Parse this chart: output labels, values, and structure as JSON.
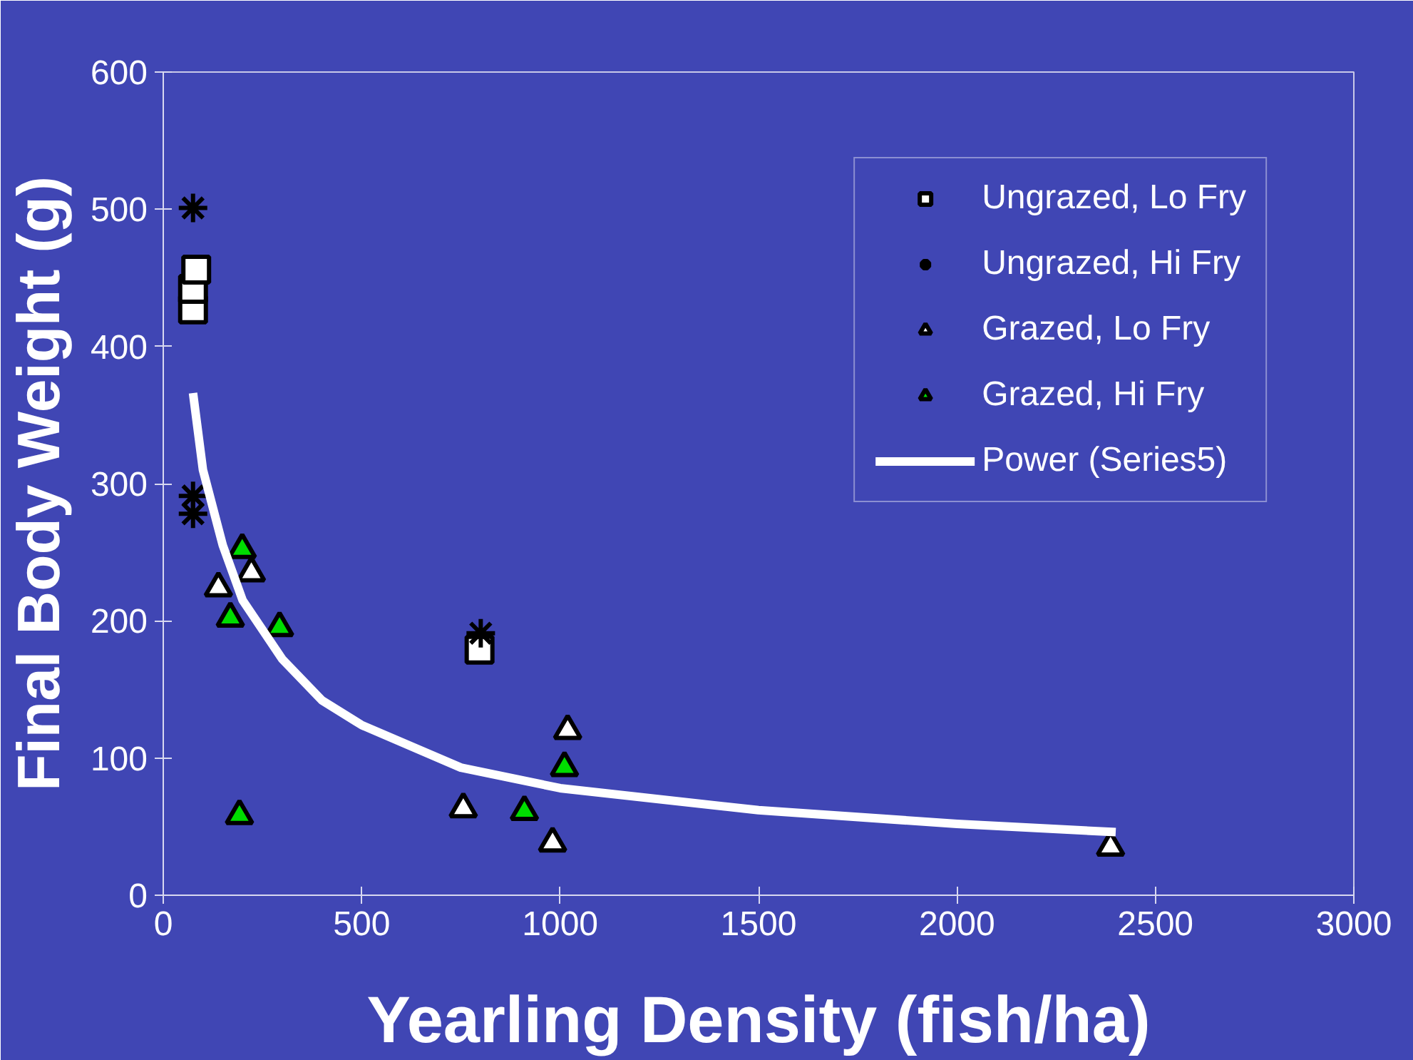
{
  "chart_data": {
    "type": "scatter",
    "xlabel": "Yearling Density (fish/ha)",
    "ylabel": "Final Body Weight (g)",
    "xlim": [
      0,
      3000
    ],
    "xticks": [
      0,
      500,
      1000,
      1500,
      2000,
      2500,
      3000
    ],
    "ylim": [
      0,
      600
    ],
    "yticks": [
      0,
      100,
      200,
      300,
      400,
      500,
      600
    ],
    "grid": false,
    "legend": "top right",
    "series": [
      {
        "name": "Ungrazed, Lo Fry",
        "color": "#ffffff",
        "marker": "square",
        "x": [
          75,
          75,
          83,
          797
        ],
        "values": [
          427,
          442,
          456,
          179
        ]
      },
      {
        "name": "Ungrazed, Hi Fry",
        "color": "#000000",
        "marker": "cross",
        "x": [
          75,
          75,
          75,
          800
        ],
        "values": [
          501,
          291,
          278,
          191
        ]
      },
      {
        "name": "Grazed, Lo Fry",
        "color": "#ffffff",
        "marker": "triangle",
        "x": [
          139,
          222,
          756,
          1019,
          981,
          2387
        ],
        "values": [
          224,
          235,
          63,
          120,
          38,
          35
        ]
      },
      {
        "name": "Grazed, Hi Fry",
        "color": "#00dd00",
        "marker": "triangle",
        "x": [
          199,
          169,
          293,
          192,
          910,
          1011
        ],
        "values": [
          252,
          202,
          195,
          58,
          61,
          93
        ]
      },
      {
        "name": "Power (Series5)",
        "type": "line",
        "color": "#ffffff",
        "x": [
          75,
          100,
          150,
          200,
          300,
          400,
          500,
          750,
          1000,
          1500,
          2000,
          2400
        ],
        "values": [
          366,
          310,
          255,
          215,
          172,
          142,
          124,
          93,
          78,
          62,
          52,
          46
        ]
      }
    ]
  }
}
